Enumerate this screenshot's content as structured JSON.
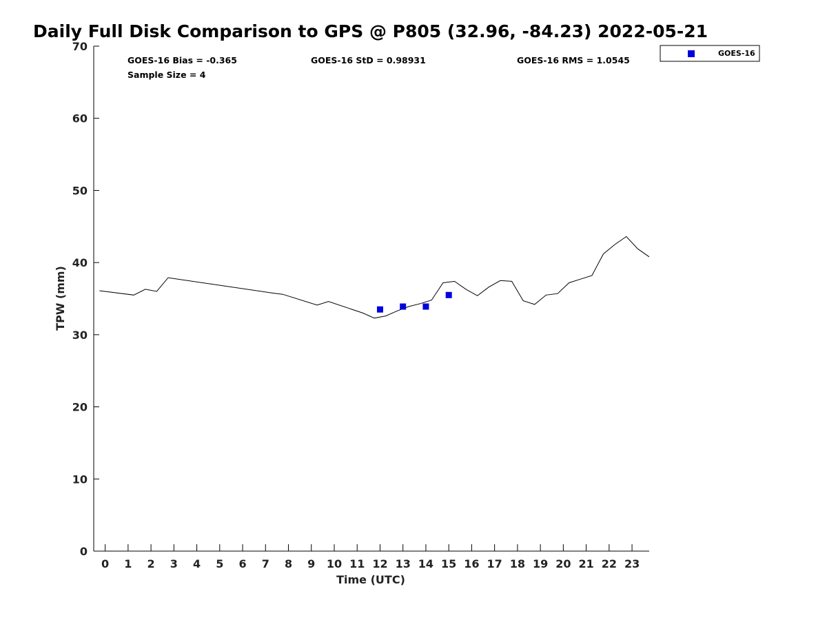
{
  "chart_data": {
    "type": "line",
    "title": "Daily Full Disk Comparison to GPS @ P805 (32.96, -84.23) 2022-05-21",
    "xlabel": "Time (UTC)",
    "ylabel": "TPW (mm)",
    "xlim": [
      -0.5,
      23.75
    ],
    "ylim": [
      0,
      70
    ],
    "x_ticks": [
      0,
      1,
      2,
      3,
      4,
      5,
      6,
      7,
      8,
      9,
      10,
      11,
      12,
      13,
      14,
      15,
      16,
      17,
      18,
      19,
      20,
      21,
      22,
      23
    ],
    "x_tick_labels": [
      "0",
      "1",
      "2",
      "3",
      "4",
      "5",
      "6",
      "7",
      "8",
      "9",
      "10",
      "11",
      "12",
      "13",
      "14",
      "15",
      "16",
      "17",
      "18",
      "19",
      "20",
      "21",
      "22",
      "23"
    ],
    "y_ticks": [
      0,
      10,
      20,
      30,
      40,
      50,
      60,
      70
    ],
    "y_tick_labels": [
      "0",
      "10",
      "20",
      "30",
      "40",
      "50",
      "60",
      "70"
    ],
    "grid": false,
    "legend_position": "outside-top-right",
    "series": [
      {
        "kind": "line",
        "color": "#000000",
        "x": [
          -0.25,
          1.25,
          1.75,
          2.25,
          2.75,
          7.25,
          7.75,
          9.25,
          9.75,
          11.25,
          11.75,
          12.25,
          12.75,
          13.25,
          13.75,
          14.25,
          14.75,
          15.25,
          15.75,
          16.25,
          16.75,
          17.25,
          17.75,
          18.25,
          18.75,
          19.25,
          19.75,
          20.25,
          20.75,
          21.25,
          21.75,
          22.25,
          22.75,
          23.25,
          23.75
        ],
        "y": [
          36.1,
          35.5,
          36.3,
          36.0,
          37.9,
          35.8,
          35.6,
          34.1,
          34.6,
          33.0,
          32.3,
          32.6,
          33.3,
          33.9,
          34.3,
          34.8,
          37.2,
          37.4,
          36.3,
          35.4,
          36.6,
          37.5,
          37.4,
          34.7,
          34.2,
          35.5,
          35.7,
          37.2,
          37.7,
          38.2,
          41.2,
          42.5,
          43.6,
          41.9,
          40.8
        ]
      },
      {
        "name": "GOES-16",
        "kind": "scatter",
        "marker": "square",
        "color": "#0000dd",
        "x": [
          12,
          13,
          14,
          15
        ],
        "y": [
          33.5,
          33.9,
          33.9,
          35.5
        ]
      }
    ],
    "annotations": {
      "bias": "GOES-16 Bias = -0.365",
      "std": "GOES-16 StD = 0.98931",
      "rms": "GOES-16 RMS = 1.0545",
      "sample_size": "Sample Size = 4"
    },
    "legend": [
      {
        "label": "GOES-16",
        "marker": "square",
        "color": "#0000dd"
      }
    ]
  }
}
